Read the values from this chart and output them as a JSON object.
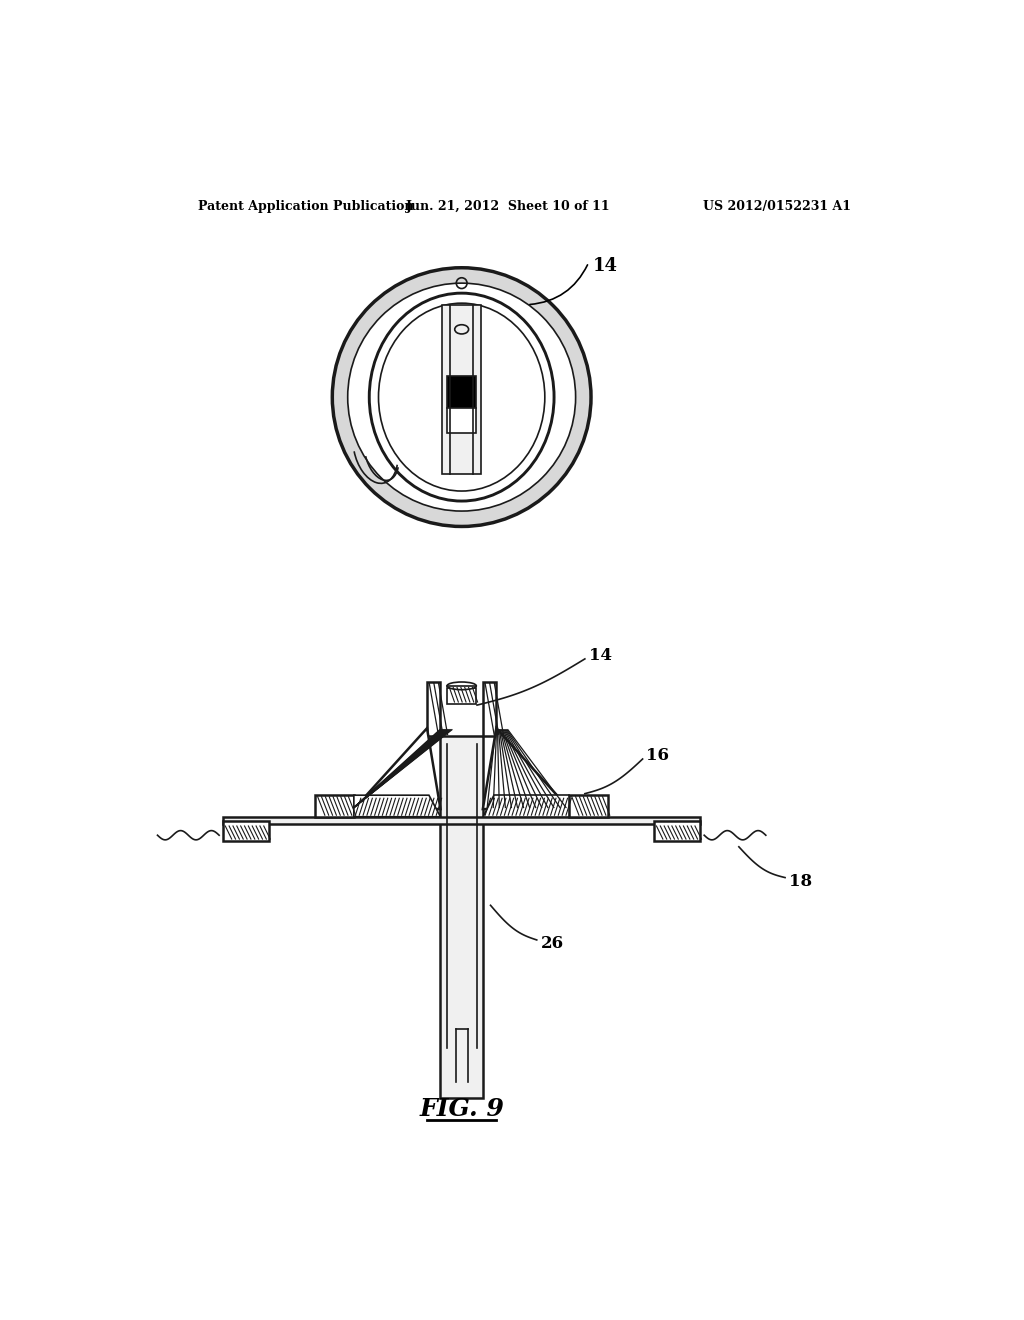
{
  "bg_color": "#ffffff",
  "header_left": "Patent Application Publication",
  "header_mid": "Jun. 21, 2012  Sheet 10 of 11",
  "header_right": "US 2012/0152231 A1",
  "fig_label": "FIG. 9",
  "label_14_top": "14",
  "label_14_bottom": "14",
  "label_16": "16",
  "label_18": "18",
  "label_26": "26"
}
